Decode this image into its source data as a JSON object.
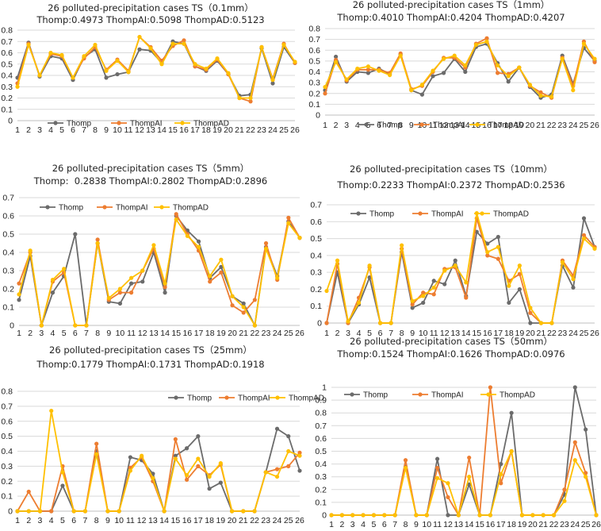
{
  "colors": {
    "Thomp": "#6b6b6b",
    "ThompAI": "#ed7d31",
    "ThompAD": "#ffc000",
    "grid": "#d9d9d9"
  },
  "chart_data": [
    {
      "type": "line",
      "title": "26 polluted-precipitation cases TS（0.1mm）",
      "subtitle": "Thomp:0.4973 ThompAI:0.5098 ThompAD:0.5123",
      "categories": [
        "1",
        "2",
        "3",
        "4",
        "5",
        "6",
        "7",
        "8",
        "9",
        "10",
        "11",
        "12",
        "13",
        "14",
        "15",
        "16",
        "17",
        "18",
        "19",
        "20",
        "21",
        "22",
        "23",
        "24",
        "25",
        "26"
      ],
      "ylim": [
        0,
        0.8
      ],
      "yticks": [
        "0",
        "0.1",
        "0.2",
        "0.3",
        "0.4",
        "0.5",
        "0.6",
        "0.7",
        "0.8"
      ],
      "grid": true,
      "legend": "lower-left",
      "series": [
        {
          "name": "Thomp",
          "values": [
            0.38,
            0.69,
            0.39,
            0.57,
            0.55,
            0.36,
            0.56,
            0.63,
            0.38,
            0.41,
            0.43,
            0.63,
            0.62,
            0.51,
            0.7,
            0.68,
            0.48,
            0.44,
            0.53,
            0.41,
            0.22,
            0.23,
            0.64,
            0.33,
            0.65,
            0.51
          ]
        },
        {
          "name": "ThompAI",
          "values": [
            0.33,
            0.68,
            0.4,
            0.59,
            0.57,
            0.38,
            0.55,
            0.65,
            0.45,
            0.54,
            0.44,
            0.74,
            0.65,
            0.53,
            0.66,
            0.71,
            0.48,
            0.45,
            0.54,
            0.41,
            0.2,
            0.17,
            0.65,
            0.37,
            0.68,
            0.51
          ]
        },
        {
          "name": "ThompAD",
          "values": [
            0.3,
            0.67,
            0.4,
            0.6,
            0.58,
            0.38,
            0.57,
            0.67,
            0.44,
            0.53,
            0.43,
            0.74,
            0.64,
            0.5,
            0.68,
            0.68,
            0.5,
            0.46,
            0.55,
            0.42,
            0.2,
            0.2,
            0.65,
            0.36,
            0.67,
            0.52
          ]
        }
      ]
    },
    {
      "type": "line",
      "title": "26 polluted-precipitation cases TS（1mm）",
      "subtitle": "Thomp:0.4010 ThompAI:0.4204 ThompAD:0.4207",
      "categories": [
        "1",
        "2",
        "3",
        "4",
        "5",
        "6",
        "7",
        "8",
        "9",
        "10",
        "11",
        "12",
        "13",
        "14",
        "15",
        "16",
        "17",
        "18",
        "19",
        "20",
        "21",
        "22",
        "23",
        "24",
        "25",
        "26"
      ],
      "ylim": [
        0,
        0.8
      ],
      "yticks": [
        "0",
        "0.1",
        "0.2",
        "0.3",
        "0.4",
        "0.5",
        "0.6",
        "0.7",
        "0.8"
      ],
      "grid": true,
      "legend": "lower-left",
      "series": [
        {
          "name": "Thomp",
          "values": [
            0.23,
            0.54,
            0.31,
            0.4,
            0.39,
            0.43,
            0.38,
            0.56,
            0.23,
            0.19,
            0.36,
            0.39,
            0.52,
            0.4,
            0.63,
            0.66,
            0.48,
            0.31,
            0.44,
            0.26,
            0.16,
            0.19,
            0.55,
            0.29,
            0.62,
            0.5
          ]
        },
        {
          "name": "ThompAI",
          "values": [
            0.2,
            0.51,
            0.32,
            0.42,
            0.42,
            0.42,
            0.39,
            0.57,
            0.24,
            0.27,
            0.4,
            0.53,
            0.53,
            0.44,
            0.66,
            0.71,
            0.39,
            0.38,
            0.44,
            0.27,
            0.21,
            0.16,
            0.53,
            0.27,
            0.68,
            0.49
          ]
        },
        {
          "name": "ThompAD",
          "values": [
            0.26,
            0.49,
            0.33,
            0.43,
            0.45,
            0.41,
            0.37,
            0.55,
            0.23,
            0.28,
            0.41,
            0.52,
            0.55,
            0.46,
            0.65,
            0.68,
            0.46,
            0.36,
            0.44,
            0.28,
            0.18,
            0.17,
            0.52,
            0.23,
            0.66,
            0.52
          ]
        }
      ]
    },
    {
      "type": "line",
      "title": "26 polluted-precipitation cases TS（5mm）",
      "subtitle": "Thomp:  0.2838 ThompAI:0.2802 ThompAD:0.2896",
      "categories": [
        "1",
        "2",
        "3",
        "4",
        "5",
        "6",
        "7",
        "8",
        "9",
        "10",
        "11",
        "12",
        "13",
        "14",
        "15",
        "16",
        "17",
        "18",
        "19",
        "20",
        "21",
        "22",
        "23",
        "24",
        "25",
        "26"
      ],
      "ylim": [
        0,
        0.7
      ],
      "yticks": [
        "0",
        "0.1",
        "0.2",
        "0.3",
        "0.4",
        "0.5",
        "0.6",
        "0.7"
      ],
      "grid": true,
      "legend": "top-left",
      "series": [
        {
          "name": "Thomp",
          "values": [
            0.14,
            0.38,
            0,
            0.18,
            0.27,
            0.5,
            0,
            0.45,
            0.13,
            0.12,
            0.23,
            0.24,
            0.4,
            0.18,
            0.6,
            0.52,
            0.46,
            0.26,
            0.32,
            0.16,
            0.12,
            0,
            0.43,
            0.27,
            0.57,
            0.48
          ]
        },
        {
          "name": "ThompAI",
          "values": [
            0.23,
            0.4,
            0,
            0.24,
            0.29,
            0,
            0,
            0.47,
            0.14,
            0.18,
            0.18,
            0.3,
            0.42,
            0.21,
            0.61,
            0.5,
            0.41,
            0.24,
            0.29,
            0.11,
            0.07,
            0.14,
            0.45,
            0.25,
            0.59,
            0.48
          ]
        },
        {
          "name": "ThompAD",
          "values": [
            0.17,
            0.41,
            0,
            0.25,
            0.31,
            0,
            0,
            0.45,
            0.15,
            0.2,
            0.26,
            0.3,
            0.44,
            0.23,
            0.58,
            0.49,
            0.43,
            0.27,
            0.36,
            0.16,
            0.1,
            0,
            0.42,
            0.26,
            0.56,
            0.48
          ]
        }
      ]
    },
    {
      "type": "line",
      "title": "26 polluted-precipitation cases TS（10mm）",
      "subtitle": "Thomp:0.2233 ThompAI:0.2372 ThompAD:0.2536",
      "categories": [
        "1",
        "2",
        "3",
        "4",
        "5",
        "6",
        "7",
        "8",
        "9",
        "10",
        "11",
        "12",
        "13",
        "14",
        "15",
        "16",
        "17",
        "18",
        "19",
        "20",
        "21",
        "22",
        "23",
        "24",
        "25",
        "26"
      ],
      "ylim": [
        0,
        0.7
      ],
      "yticks": [
        "0",
        "0.1",
        "0.2",
        "0.3",
        "0.4",
        "0.5",
        "0.6",
        "0.7"
      ],
      "grid": true,
      "legend": "top-center",
      "series": [
        {
          "name": "Thomp",
          "values": [
            0,
            0.3,
            0,
            0.11,
            0.27,
            0,
            0,
            0.42,
            0.09,
            0.12,
            0.25,
            0.23,
            0.37,
            0.16,
            0.54,
            0.47,
            0.51,
            0.12,
            0.2,
            0,
            0,
            0,
            0.34,
            0.21,
            0.62,
            0.45
          ]
        },
        {
          "name": "ThompAI",
          "values": [
            0,
            0.35,
            0,
            0.15,
            0.33,
            0,
            0,
            0.44,
            0.11,
            0.18,
            0.17,
            0.32,
            0.33,
            0.15,
            0.62,
            0.4,
            0.38,
            0.25,
            0.29,
            0.06,
            0,
            0,
            0.37,
            0.28,
            0.52,
            0.45
          ]
        },
        {
          "name": "ThompAD",
          "values": [
            0.19,
            0.37,
            0.01,
            0.12,
            0.34,
            0,
            0,
            0.46,
            0.13,
            0.16,
            0.21,
            0.31,
            0.34,
            0.24,
            0.65,
            0.42,
            0.45,
            0.22,
            0.34,
            0.09,
            0,
            0,
            0.36,
            0.26,
            0.5,
            0.44
          ]
        }
      ]
    },
    {
      "type": "line",
      "title": "26 polluted-precipitation cases TS（25mm）",
      "subtitle": "Thomp:0.1779 ThompAI:0.1731 ThompAD:0.1918",
      "categories": [
        "1",
        "2",
        "3",
        "4",
        "5",
        "6",
        "7",
        "8",
        "9",
        "10",
        "11",
        "12",
        "13",
        "14",
        "15",
        "16",
        "17",
        "18",
        "19",
        "20",
        "21",
        "22",
        "23",
        "24",
        "25",
        "26"
      ],
      "ylim": [
        0,
        0.8
      ],
      "yticks": [
        "0",
        "0.1",
        "0.2",
        "0.3",
        "0.4",
        "0.5",
        "0.6",
        "0.7",
        "0.8"
      ],
      "grid": true,
      "legend": "top-right",
      "series": [
        {
          "name": "Thomp",
          "values": [
            0,
            0,
            0,
            0,
            0.17,
            0,
            0,
            0.4,
            0,
            0,
            0.36,
            0.34,
            0.25,
            0,
            0.37,
            0.42,
            0.5,
            0.15,
            0.19,
            0,
            0,
            0,
            0.26,
            0.55,
            0.5,
            0.27
          ]
        },
        {
          "name": "ThompAI",
          "values": [
            0,
            0.13,
            0,
            0,
            0.3,
            0,
            0,
            0.45,
            0,
            0,
            0.29,
            0.36,
            0.2,
            0,
            0.48,
            0.21,
            0.3,
            0.24,
            0.31,
            0,
            0,
            0,
            0.26,
            0.28,
            0.3,
            0.39
          ]
        },
        {
          "name": "ThompAD",
          "values": [
            0,
            0,
            0,
            0.67,
            0.26,
            0,
            0,
            0.38,
            0,
            0,
            0.27,
            0.37,
            0.22,
            0,
            0.35,
            0.24,
            0.35,
            0.23,
            0.32,
            0,
            0,
            0,
            0.26,
            0.23,
            0.4,
            0.37
          ]
        }
      ]
    },
    {
      "type": "line",
      "title": "26 polluted-precipitation cases TS（50mm）",
      "subtitle": "Thomp:0.1524 ThompAI:0.1626 ThompAD:0.0976",
      "categories": [
        "1",
        "2",
        "3",
        "4",
        "5",
        "6",
        "7",
        "8",
        "9",
        "10",
        "11",
        "12",
        "13",
        "14",
        "15",
        "16",
        "17",
        "18",
        "19",
        "20",
        "21",
        "22",
        "23",
        "24",
        "25",
        "26"
      ],
      "ylim": [
        0,
        1
      ],
      "yticks": [
        "0",
        "0.1",
        "0.2",
        "0.3",
        "0.4",
        "0.5",
        "0.6",
        "0.7",
        "0.8",
        "0.9",
        "1"
      ],
      "grid": true,
      "legend": "top-left",
      "series": [
        {
          "name": "Thomp",
          "values": [
            0,
            0,
            0,
            0,
            0,
            0,
            0,
            0.38,
            0,
            0,
            0.44,
            0,
            0,
            0.24,
            0,
            0,
            0.4,
            0.8,
            0,
            0,
            0,
            0,
            0.16,
            1.0,
            0.67,
            0
          ]
        },
        {
          "name": "ThompAI",
          "values": [
            0,
            0,
            0,
            0,
            0,
            0,
            0,
            0.43,
            0,
            0,
            0.37,
            0.14,
            0,
            0.45,
            0,
            1.0,
            0.25,
            0.5,
            0,
            0,
            0,
            0,
            0.2,
            0.57,
            0.33,
            0
          ]
        },
        {
          "name": "ThompAD",
          "values": [
            0,
            0,
            0,
            0,
            0,
            0,
            0,
            0.37,
            0,
            0,
            0.29,
            0.25,
            0,
            0.3,
            0,
            0,
            0.32,
            0.5,
            0,
            0,
            0,
            0,
            0.11,
            0.43,
            0.3,
            0
          ]
        }
      ]
    }
  ]
}
